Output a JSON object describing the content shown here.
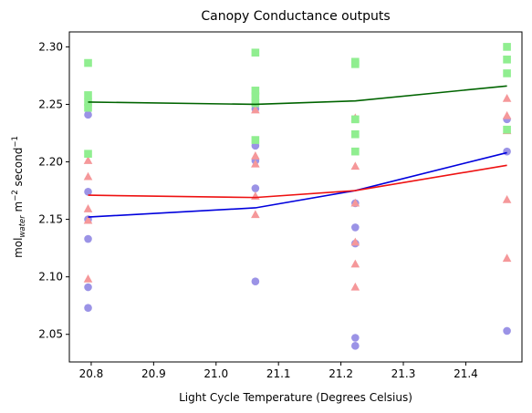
{
  "chart_data": {
    "type": "scatter",
    "title": "Canopy Conductance outputs",
    "xlabel": "Light Cycle Temperature (Degrees Celsius)",
    "ylabel": {
      "base": "mol",
      "sub": "water",
      "mid": " m",
      "sup1": "−2",
      "mid2": " second",
      "sup2": "−1"
    },
    "xlim": [
      20.765,
      21.49
    ],
    "ylim": [
      2.026,
      2.313
    ],
    "xticks": [
      "20.8",
      "20.9",
      "21.0",
      "21.1",
      "21.2",
      "21.3",
      "21.4"
    ],
    "yticks": [
      "2.05",
      "2.10",
      "2.15",
      "2.20",
      "2.25",
      "2.30"
    ],
    "grid": false,
    "series": [
      {
        "marker": "circle",
        "color": "#9b93e6",
        "line_color": "#0000dd",
        "points": [
          [
            20.795,
            2.241
          ],
          [
            20.795,
            2.174
          ],
          [
            20.795,
            2.15
          ],
          [
            20.795,
            2.133
          ],
          [
            20.795,
            2.091
          ],
          [
            20.795,
            2.073
          ],
          [
            21.063,
            2.246
          ],
          [
            21.063,
            2.214
          ],
          [
            21.063,
            2.201
          ],
          [
            21.063,
            2.177
          ],
          [
            21.063,
            2.096
          ],
          [
            21.223,
            2.164
          ],
          [
            21.223,
            2.143
          ],
          [
            21.223,
            2.129
          ],
          [
            21.223,
            2.047
          ],
          [
            21.223,
            2.04
          ],
          [
            21.466,
            2.237
          ],
          [
            21.466,
            2.209
          ],
          [
            21.466,
            2.053
          ]
        ],
        "line": [
          [
            20.795,
            2.152
          ],
          [
            21.063,
            2.16
          ],
          [
            21.223,
            2.175
          ],
          [
            21.466,
            2.208
          ]
        ]
      },
      {
        "marker": "triangle",
        "color": "#f5989a",
        "line_color": "#ee1111",
        "points": [
          [
            20.795,
            2.201
          ],
          [
            20.795,
            2.187
          ],
          [
            20.795,
            2.159
          ],
          [
            20.795,
            2.149
          ],
          [
            20.795,
            2.098
          ],
          [
            21.063,
            2.245
          ],
          [
            21.063,
            2.205
          ],
          [
            21.063,
            2.198
          ],
          [
            21.063,
            2.17
          ],
          [
            21.063,
            2.154
          ],
          [
            21.223,
            2.238
          ],
          [
            21.223,
            2.196
          ],
          [
            21.223,
            2.164
          ],
          [
            21.223,
            2.13
          ],
          [
            21.223,
            2.111
          ],
          [
            21.223,
            2.091
          ],
          [
            21.466,
            2.255
          ],
          [
            21.466,
            2.24
          ],
          [
            21.466,
            2.227
          ],
          [
            21.466,
            2.167
          ],
          [
            21.466,
            2.116
          ]
        ],
        "line": [
          [
            20.795,
            2.171
          ],
          [
            21.063,
            2.169
          ],
          [
            21.223,
            2.175
          ],
          [
            21.466,
            2.197
          ]
        ]
      },
      {
        "marker": "square",
        "color": "#90ee90",
        "line_color": "#006400",
        "points": [
          [
            20.795,
            2.286
          ],
          [
            20.795,
            2.258
          ],
          [
            20.795,
            2.252
          ],
          [
            20.795,
            2.247
          ],
          [
            20.795,
            2.207
          ],
          [
            21.063,
            2.295
          ],
          [
            21.063,
            2.262
          ],
          [
            21.063,
            2.257
          ],
          [
            21.063,
            2.251
          ],
          [
            21.063,
            2.219
          ],
          [
            21.223,
            2.287
          ],
          [
            21.223,
            2.285
          ],
          [
            21.223,
            2.237
          ],
          [
            21.223,
            2.224
          ],
          [
            21.223,
            2.209
          ],
          [
            21.466,
            2.3
          ],
          [
            21.466,
            2.289
          ],
          [
            21.466,
            2.277
          ],
          [
            21.466,
            2.228
          ]
        ],
        "line": [
          [
            20.795,
            2.252
          ],
          [
            21.063,
            2.25
          ],
          [
            21.223,
            2.253
          ],
          [
            21.466,
            2.266
          ]
        ]
      }
    ]
  }
}
